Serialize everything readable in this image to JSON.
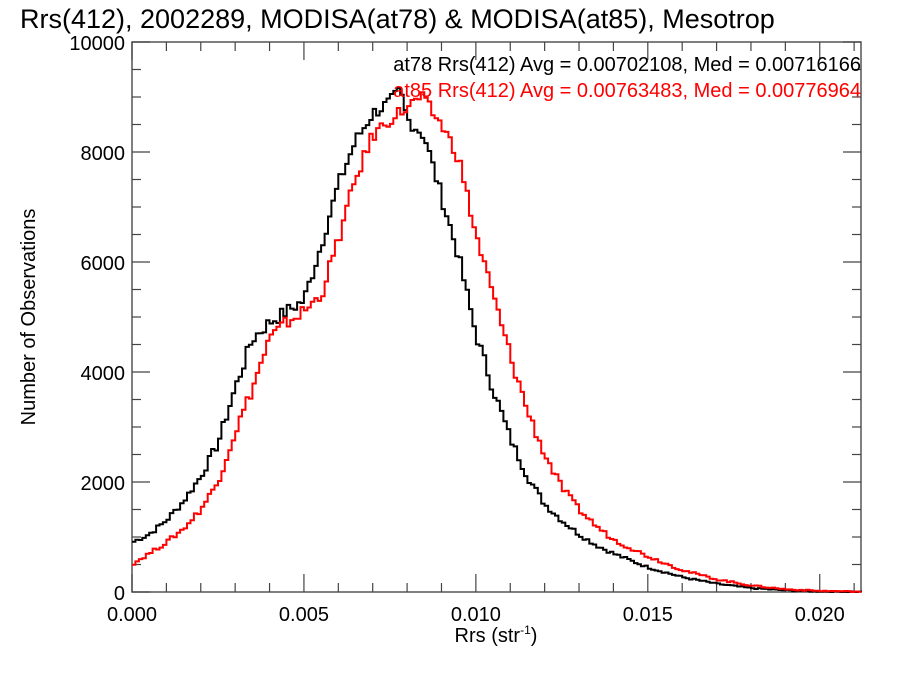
{
  "chart_data": {
    "type": "line",
    "style": "step-histogram",
    "title": "Rrs(412), 2002289, MODISA(at78) & MODISA(at85), Mesotrop",
    "xlabel": "Rrs (str",
    "xlabel_superscript": "-1",
    "xlabel_suffix": ")",
    "ylabel": "Number of Observations",
    "xlim": [
      0.0,
      0.0212
    ],
    "ylim": [
      0,
      10000
    ],
    "x_ticks": [
      {
        "value": 0.0,
        "label": "0.000"
      },
      {
        "value": 0.005,
        "label": "0.005"
      },
      {
        "value": 0.01,
        "label": "0.010"
      },
      {
        "value": 0.015,
        "label": "0.015"
      },
      {
        "value": 0.02,
        "label": "0.020"
      }
    ],
    "y_ticks": [
      {
        "value": 0,
        "label": "0"
      },
      {
        "value": 2000,
        "label": "2000"
      },
      {
        "value": 4000,
        "label": "4000"
      },
      {
        "value": 6000,
        "label": "6000"
      },
      {
        "value": 8000,
        "label": "8000"
      },
      {
        "value": 10000,
        "label": "10000"
      }
    ],
    "x_minor_step": 0.001,
    "y_minor_step": 500,
    "grid": false,
    "legend_position": "top-right",
    "series": [
      {
        "name": "at78",
        "color": "#000000",
        "legend": "at78 Rrs(412) Avg = 0.00702108, Med = 0.00716166",
        "x": [
          0.0,
          0.0005,
          0.001,
          0.0015,
          0.002,
          0.0025,
          0.003,
          0.0035,
          0.004,
          0.0045,
          0.005,
          0.0055,
          0.006,
          0.0065,
          0.007,
          0.0075,
          0.0078,
          0.008,
          0.0085,
          0.009,
          0.0095,
          0.01,
          0.0105,
          0.011,
          0.0115,
          0.012,
          0.0125,
          0.013,
          0.0135,
          0.014,
          0.015,
          0.016,
          0.017,
          0.018,
          0.019,
          0.02,
          0.021
        ],
        "y": [
          900,
          1050,
          1300,
          1650,
          2100,
          2700,
          3700,
          4600,
          4900,
          5100,
          5300,
          6300,
          7400,
          8200,
          8700,
          8900,
          9100,
          8600,
          8300,
          7200,
          6100,
          4700,
          3700,
          2800,
          2100,
          1600,
          1300,
          1050,
          850,
          700,
          450,
          270,
          150,
          70,
          30,
          10,
          5
        ]
      },
      {
        "name": "at85",
        "color": "#ff0000",
        "legend": "at85 Rrs(412) Avg = 0.00763483, Med = 0.00776964",
        "x": [
          0.0,
          0.0005,
          0.001,
          0.0015,
          0.002,
          0.0025,
          0.003,
          0.0035,
          0.004,
          0.0045,
          0.005,
          0.0055,
          0.006,
          0.0065,
          0.007,
          0.0075,
          0.008,
          0.0084,
          0.009,
          0.0095,
          0.01,
          0.0105,
          0.011,
          0.0115,
          0.012,
          0.0125,
          0.013,
          0.0135,
          0.014,
          0.015,
          0.016,
          0.017,
          0.018,
          0.019,
          0.02,
          0.021
        ],
        "y": [
          500,
          700,
          900,
          1150,
          1500,
          2000,
          2900,
          3700,
          4600,
          4900,
          5100,
          5400,
          6400,
          7500,
          8300,
          8600,
          8800,
          9000,
          8500,
          7900,
          6500,
          5400,
          4300,
          3300,
          2500,
          1900,
          1500,
          1200,
          950,
          650,
          400,
          230,
          120,
          50,
          20,
          8
        ]
      }
    ]
  }
}
